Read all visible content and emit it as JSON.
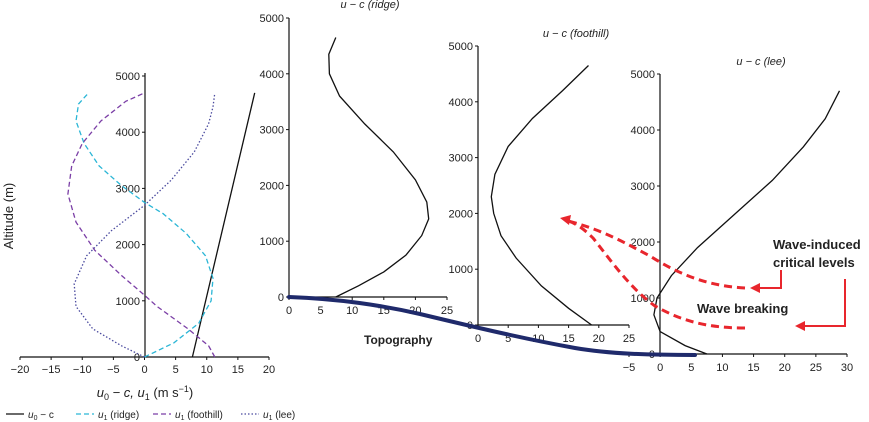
{
  "chart_data": [
    {
      "type": "line",
      "xlabel": "u0 − c, u1 (m s−1)",
      "xlabel_html": [
        "u",
        "0",
        " − c, u",
        "1",
        " (m s",
        "−1",
        ")"
      ],
      "ylabel": "Altitude (m)",
      "xlim": [
        -20,
        20
      ],
      "ylim": [
        0,
        5000
      ],
      "xticks": [
        -20,
        -15,
        -10,
        -5,
        0,
        5,
        10,
        15,
        20
      ],
      "xtick_labels": [
        "−20",
        "−15",
        "−10",
        "−5",
        "0",
        "5",
        "10",
        "15",
        "20"
      ],
      "yticks": [
        0,
        1000,
        2000,
        3000,
        4000,
        5000
      ],
      "ytick_labels": [
        "0",
        "1000",
        "2000",
        "3000",
        "4000",
        "5000"
      ],
      "legend_position": "bottom",
      "series": [
        {
          "name": "u0 − c",
          "style": "solid",
          "color": "#111111",
          "x": [
            7.7,
            17.7
          ],
          "y": [
            0,
            4700
          ]
        },
        {
          "name": "u1 (ridge)",
          "style": "dashed",
          "color": "#2bb6d6",
          "x": [
            0,
            4.7,
            8.7,
            10.7,
            11.0,
            9.8,
            6.7,
            3.0,
            0,
            -3.7,
            -7.3,
            -9.7,
            -11.0,
            -10.6,
            -9.0
          ],
          "y": [
            0,
            250,
            600,
            1000,
            1400,
            1800,
            2200,
            2550,
            2750,
            3050,
            3400,
            3800,
            4200,
            4500,
            4700
          ]
        },
        {
          "name": "u1 (foothill)",
          "style": "dashed",
          "color": "#7b3fa6",
          "x": [
            11.3,
            10.3,
            7.0,
            2.0,
            0,
            -3.7,
            -8.0,
            -11.0,
            -12.3,
            -11.7,
            -10.0,
            -7.0,
            -3.0,
            0
          ],
          "y": [
            0,
            200,
            500,
            900,
            1100,
            1450,
            1900,
            2400,
            2900,
            3400,
            3800,
            4200,
            4550,
            4700
          ]
        },
        {
          "name": "u1 (lee)",
          "style": "dotted",
          "color": "#4b4b9f",
          "x": [
            0,
            -3.7,
            -8.3,
            -11.0,
            -11.3,
            -9.3,
            -5.3,
            0,
            4.3,
            8.0,
            10.3,
            11.0,
            11.3
          ],
          "y": [
            0,
            200,
            500,
            900,
            1300,
            1800,
            2250,
            2700,
            3150,
            3650,
            4150,
            4450,
            4700
          ]
        }
      ],
      "legend": [
        {
          "name": "u0 − c",
          "parts": [
            "u",
            "0",
            " − c"
          ],
          "style": "solid",
          "color": "#111111"
        },
        {
          "name": "u1 (ridge)",
          "parts": [
            "u",
            "1",
            " (ridge)"
          ],
          "style": "dashed",
          "color": "#2bb6d6"
        },
        {
          "name": "u1 (foothill)",
          "parts": [
            "u",
            "1",
            " (foothill)"
          ],
          "style": "dashed",
          "color": "#7b3fa6"
        },
        {
          "name": "u1 (lee)",
          "parts": [
            "u",
            "1",
            " (lee)"
          ],
          "style": "dotted",
          "color": "#4b4b9f"
        }
      ]
    },
    {
      "type": "line",
      "title": "u − c (ridge)",
      "xlim": [
        0,
        25
      ],
      "ylim": [
        0,
        5000
      ],
      "xticks": [
        0,
        5,
        10,
        15,
        20,
        25
      ],
      "yticks": [
        0,
        1000,
        2000,
        3000,
        4000,
        5000
      ],
      "series": [
        {
          "x": [
            7.4,
            11.0,
            15.0,
            18.5,
            21.0,
            22.1,
            21.8,
            20.0,
            16.5,
            12.0,
            8.0,
            6.4,
            6.3,
            7.4
          ],
          "y": [
            0,
            200,
            450,
            750,
            1100,
            1400,
            1700,
            2100,
            2600,
            3100,
            3600,
            4000,
            4350,
            4650
          ]
        }
      ]
    },
    {
      "type": "line",
      "title": "u − c (foothill)",
      "xlim": [
        0,
        25
      ],
      "ylim": [
        0,
        5000
      ],
      "xticks": [
        0,
        5,
        10,
        15,
        20,
        25
      ],
      "yticks": [
        0,
        1000,
        2000,
        3000,
        4000,
        5000
      ],
      "series": [
        {
          "x": [
            18.8,
            15.0,
            10.5,
            6.3,
            3.8,
            2.6,
            2.2,
            2.8,
            5.0,
            9.0,
            14.0,
            18.3
          ],
          "y": [
            0,
            300,
            700,
            1200,
            1600,
            2000,
            2300,
            2700,
            3200,
            3700,
            4200,
            4650
          ]
        }
      ]
    },
    {
      "type": "line",
      "title": "u − c (lee)",
      "xlim": [
        -5,
        30
      ],
      "ylim": [
        0,
        5000
      ],
      "xticks": [
        -5,
        0,
        5,
        10,
        15,
        20,
        25,
        30
      ],
      "xtick_labels": [
        "−5",
        "0",
        "5",
        "10",
        "15",
        "20",
        "25",
        "30"
      ],
      "yticks": [
        0,
        1000,
        2000,
        3000,
        4000,
        5000
      ],
      "series": [
        {
          "x": [
            7.5,
            4.0,
            0.0,
            -1.0,
            -0.5,
            1.8,
            6.0,
            12.0,
            18.0,
            23.0,
            26.5,
            28.8
          ],
          "y": [
            0,
            150,
            400,
            700,
            1000,
            1400,
            1900,
            2500,
            3100,
            3700,
            4200,
            4700
          ]
        }
      ]
    }
  ],
  "annotations": {
    "topography_label": "Topography",
    "wave_breaking_label": "Wave breaking",
    "critical_levels_line1": "Wave-induced",
    "critical_levels_line2": "critical levels",
    "annotation_color": "#e8262d",
    "topography_color": "#1f2a6b"
  }
}
